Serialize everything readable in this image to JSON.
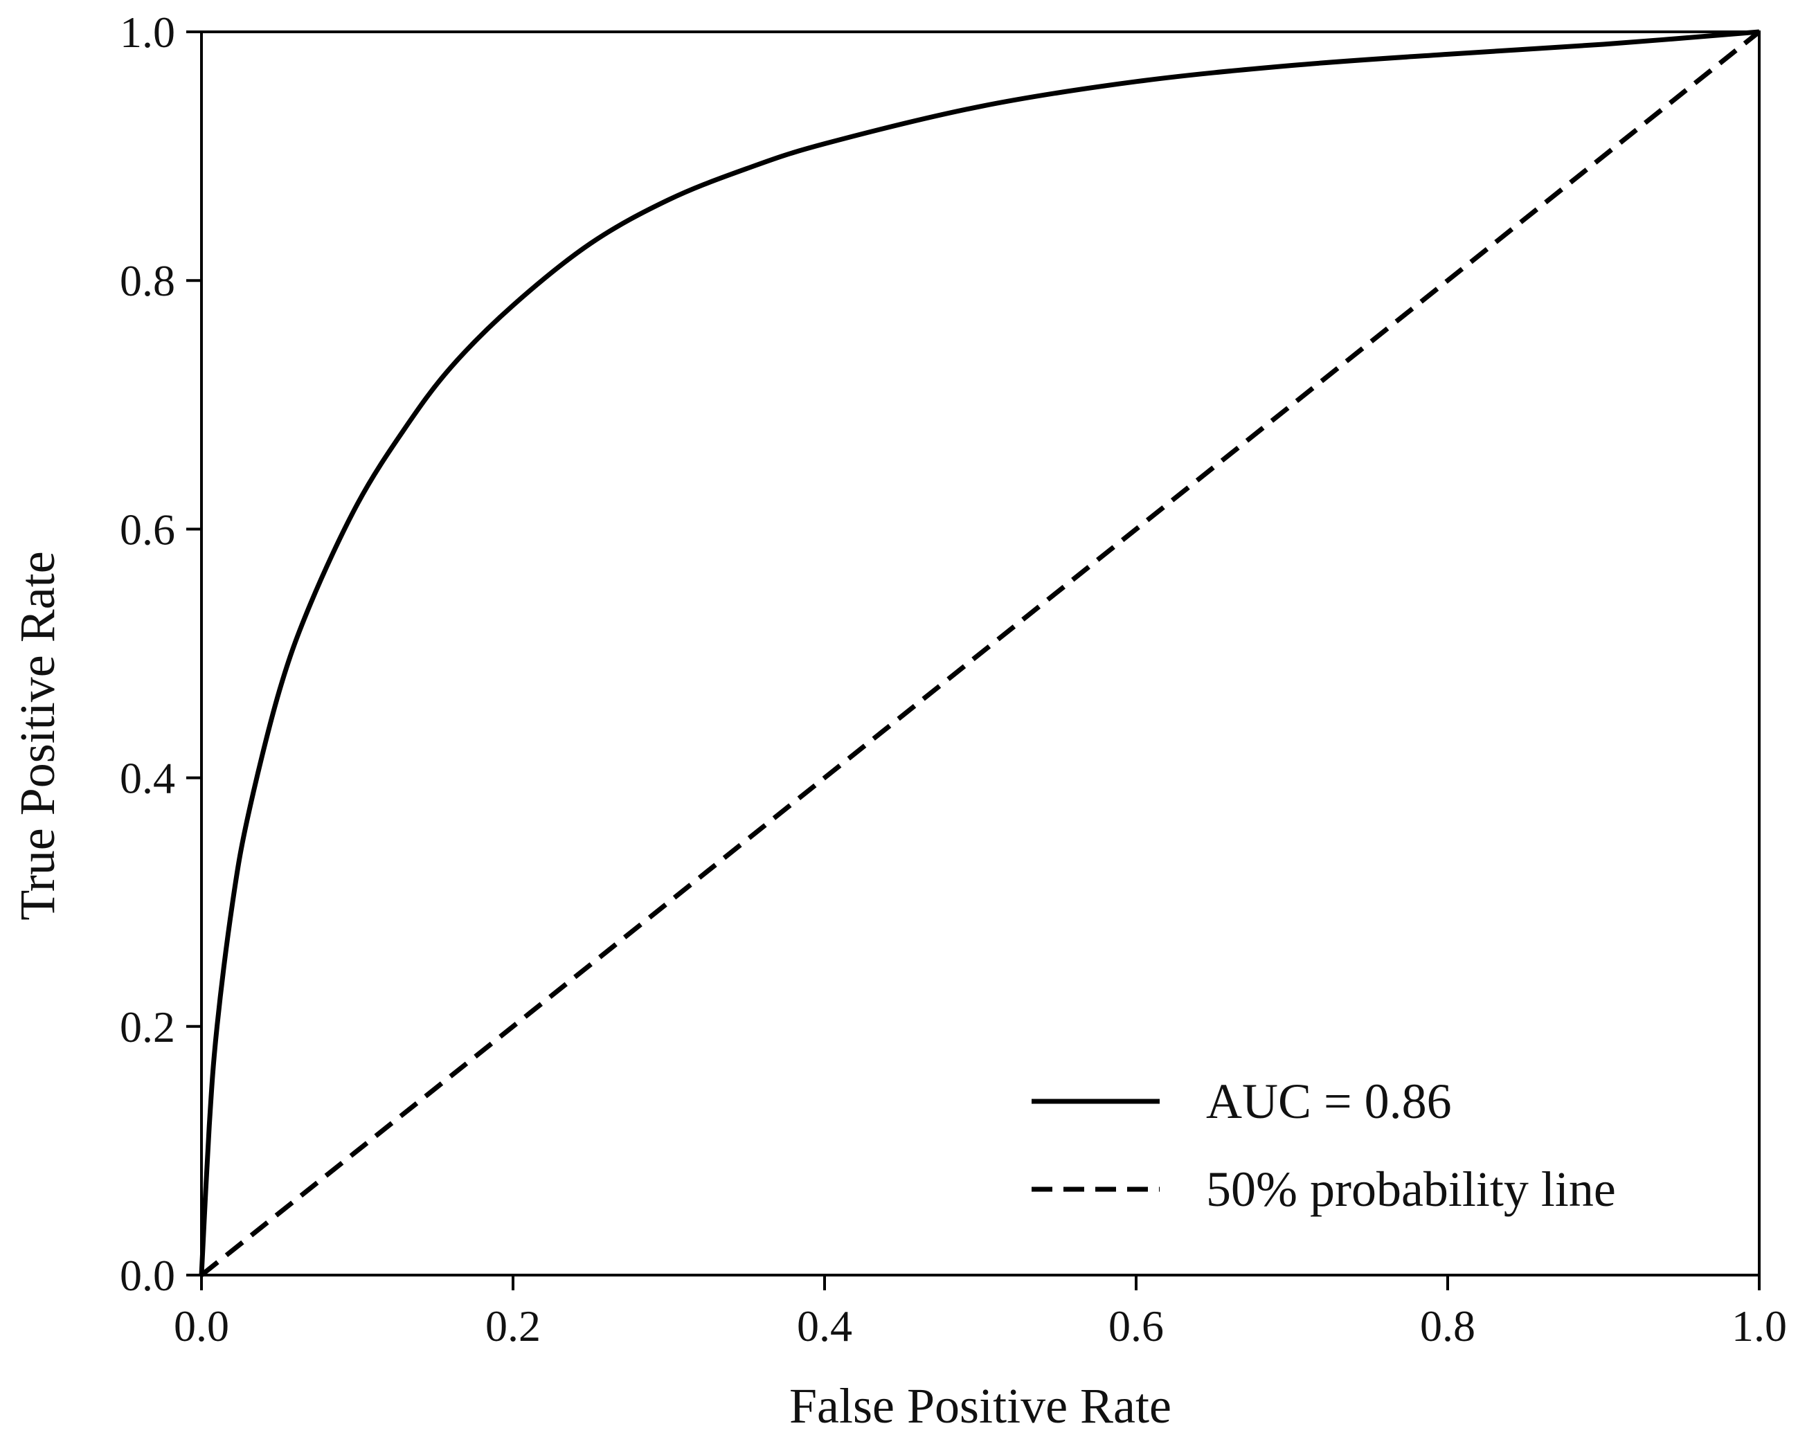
{
  "chart_data": {
    "type": "line",
    "title": "",
    "xlabel": "False Positive Rate",
    "ylabel": "True Positive Rate",
    "xlim": [
      0.0,
      1.0
    ],
    "ylim": [
      0.0,
      1.0
    ],
    "grid": false,
    "legend_position": "bottom-right",
    "x_ticks": [
      "0.0",
      "0.2",
      "0.4",
      "0.6",
      "0.8",
      "1.0"
    ],
    "y_ticks": [
      "0.0",
      "0.2",
      "0.4",
      "0.6",
      "0.8",
      "1.0"
    ],
    "series": [
      {
        "name": "AUC = 0.86",
        "style": "solid",
        "color": "#000000",
        "x": [
          0.0,
          0.005,
          0.01,
          0.02,
          0.03,
          0.05,
          0.07,
          0.1,
          0.13,
          0.16,
          0.2,
          0.25,
          0.3,
          0.35,
          0.4,
          0.5,
          0.6,
          0.7,
          0.8,
          0.9,
          1.0
        ],
        "y": [
          0.0,
          0.12,
          0.2,
          0.3,
          0.37,
          0.47,
          0.54,
          0.62,
          0.68,
          0.73,
          0.78,
          0.83,
          0.865,
          0.89,
          0.91,
          0.94,
          0.96,
          0.973,
          0.982,
          0.99,
          1.0
        ]
      },
      {
        "name": "50% probability line",
        "style": "dashed",
        "color": "#000000",
        "x": [
          0.0,
          1.0
        ],
        "y": [
          0.0,
          1.0
        ]
      }
    ]
  }
}
